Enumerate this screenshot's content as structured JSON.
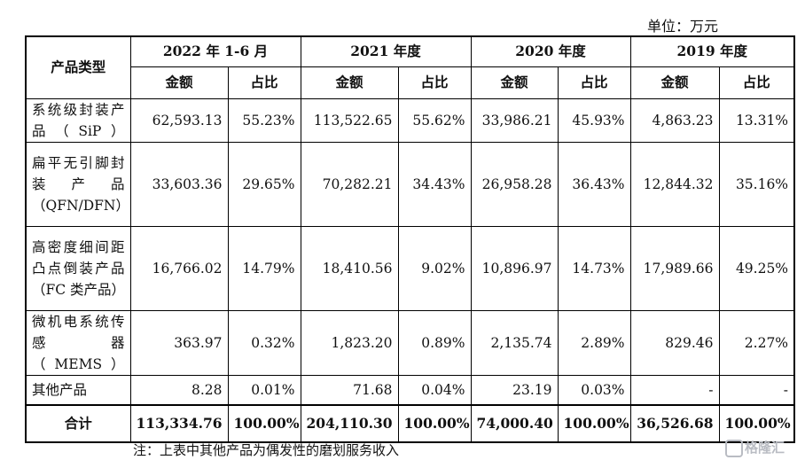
{
  "unit_label": "单位：万元",
  "header": {
    "category": "产品类型",
    "periods": [
      "2022 年 1-6 月",
      "2021 年度",
      "2020 年度",
      "2019 年度"
    ],
    "amount": "金额",
    "ratio": "占比"
  },
  "rows": [
    {
      "category": "系统级封装产品（SiP）",
      "values": [
        "62,593.13",
        "55.23%",
        "113,522.65",
        "55.62%",
        "33,986.21",
        "45.93%",
        "4,863.23",
        "13.31%"
      ]
    },
    {
      "category": "扁平无引脚封装产品（QFN/DFN）",
      "values": [
        "33,603.36",
        "29.65%",
        "70,282.21",
        "34.43%",
        "26,958.28",
        "36.43%",
        "12,844.32",
        "35.16%"
      ]
    },
    {
      "category": "高密度细间距凸点倒装产品（FC 类产品）",
      "values": [
        "16,766.02",
        "14.79%",
        "18,410.56",
        "9.02%",
        "10,896.97",
        "14.73%",
        "17,989.66",
        "49.25%"
      ]
    },
    {
      "category": "微机电系统传感器（MEMS）",
      "values": [
        "363.97",
        "0.32%",
        "1,823.20",
        "0.89%",
        "2,135.74",
        "2.89%",
        "829.46",
        "2.27%"
      ]
    },
    {
      "category": "其他产品",
      "values": [
        "8.28",
        "0.01%",
        "71.68",
        "0.04%",
        "23.19",
        "0.03%",
        "-",
        "-"
      ]
    }
  ],
  "total": {
    "label": "合计",
    "values": [
      "113,334.76",
      "100.00%",
      "204,110.30",
      "100.00%",
      "74,000.40",
      "100.00%",
      "36,526.68",
      "100.00%"
    ]
  },
  "note": "注：上表中其他产品为偶发性的磨划服务收入",
  "watermark": "格隆汇"
}
